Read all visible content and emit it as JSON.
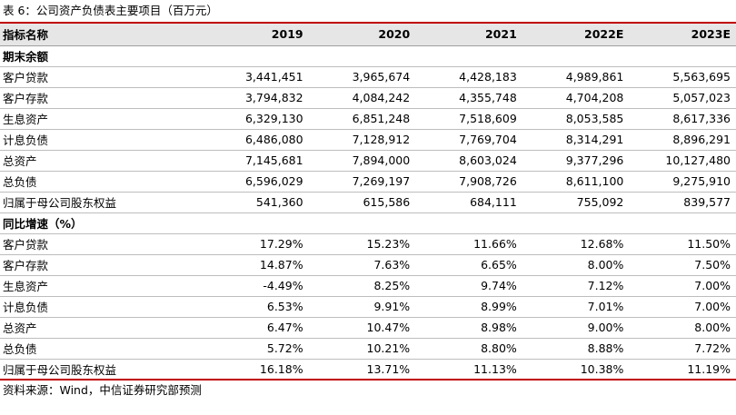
{
  "title": "表 6：公司资产负债表主要项目（百万元）",
  "header": [
    "指标名称",
    "2019",
    "2020",
    "2021",
    "2022E",
    "2023E"
  ],
  "sections": [
    {
      "title": "期末余额",
      "rows": [
        {
          "label": "客户贷款",
          "values": [
            "3,441,451",
            "3,965,674",
            "4,428,183",
            "4,989,861",
            "5,563,695"
          ]
        },
        {
          "label": "客户存款",
          "values": [
            "3,794,832",
            "4,084,242",
            "4,355,748",
            "4,704,208",
            "5,057,023"
          ]
        },
        {
          "label": "生息资产",
          "values": [
            "6,329,130",
            "6,851,248",
            "7,518,609",
            "8,053,585",
            "8,617,336"
          ]
        },
        {
          "label": "计息负债",
          "values": [
            "6,486,080",
            "7,128,912",
            "7,769,704",
            "8,314,291",
            "8,896,291"
          ]
        },
        {
          "label": "总资产",
          "values": [
            "7,145,681",
            "7,894,000",
            "8,603,024",
            "9,377,296",
            "10,127,480"
          ]
        },
        {
          "label": "总负债",
          "values": [
            "6,596,029",
            "7,269,197",
            "7,908,726",
            "8,611,100",
            "9,275,910"
          ]
        },
        {
          "label": "归属于母公司股东权益",
          "values": [
            "541,360",
            "615,586",
            "684,111",
            "755,092",
            "839,577"
          ]
        }
      ]
    },
    {
      "title": "同比增速（%）",
      "rows": [
        {
          "label": "客户贷款",
          "values": [
            "17.29%",
            "15.23%",
            "11.66%",
            "12.68%",
            "11.50%"
          ]
        },
        {
          "label": "客户存款",
          "values": [
            "14.87%",
            "7.63%",
            "6.65%",
            "8.00%",
            "7.50%"
          ]
        },
        {
          "label": "生息资产",
          "values": [
            "-4.49%",
            "8.25%",
            "9.74%",
            "7.12%",
            "7.00%"
          ]
        },
        {
          "label": "计息负债",
          "values": [
            "6.53%",
            "9.91%",
            "8.99%",
            "7.01%",
            "7.00%"
          ]
        },
        {
          "label": "总资产",
          "values": [
            "6.47%",
            "10.47%",
            "8.98%",
            "9.00%",
            "8.00%"
          ]
        },
        {
          "label": "总负债",
          "values": [
            "5.72%",
            "10.21%",
            "8.80%",
            "8.88%",
            "7.72%"
          ]
        },
        {
          "label": "归属于母公司股东权益",
          "values": [
            "16.18%",
            "13.71%",
            "11.13%",
            "10.38%",
            "11.19%"
          ]
        }
      ]
    }
  ],
  "source": "资料来源：Wind，中信证券研究部预测",
  "colors": {
    "accent_rule": "#c00000",
    "header_bg": "#e7e6e6"
  }
}
